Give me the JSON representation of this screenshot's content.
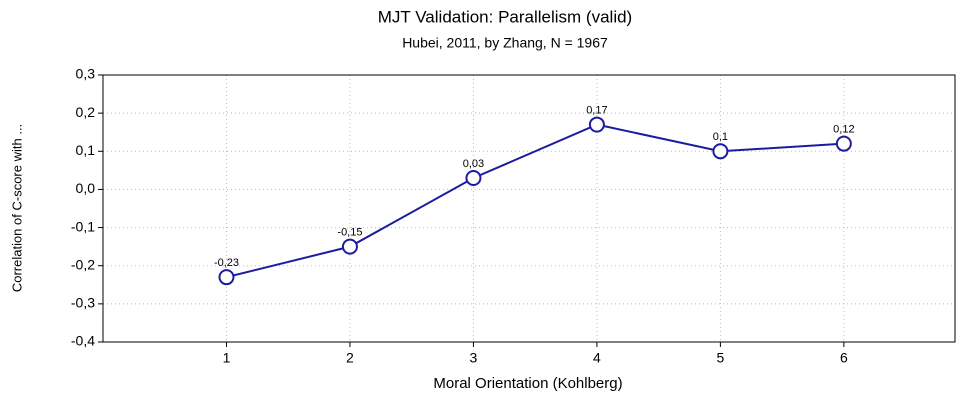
{
  "chart_data": {
    "type": "line",
    "title": "MJT Validation: Parallelism (valid)",
    "subtitle": "Hubei, 2011, by Zhang, N = 1967",
    "x_label": "Moral Orientation (Kohlberg)",
    "y_label": "Correlation of C-score with ...",
    "x": [
      1,
      2,
      3,
      4,
      5,
      6
    ],
    "series": [
      {
        "color": "#1c1ca0",
        "values": [
          -0.23,
          -0.15,
          0.03,
          0.17,
          0.1,
          0.12
        ],
        "value_labels": [
          "-0,23",
          "-0,15",
          "0,03",
          "0,17",
          "0,1",
          "0,12"
        ]
      }
    ],
    "xlim": [
      0,
      6.9
    ],
    "xticks": [
      1,
      2,
      3,
      4,
      5,
      6
    ],
    "ylim": [
      -0.4,
      0.3
    ],
    "yticks": [
      {
        "value": -0.4,
        "label": "-0,4"
      },
      {
        "value": -0.3,
        "label": "-0,3"
      },
      {
        "value": -0.2,
        "label": "-0,2"
      },
      {
        "value": -0.1,
        "label": "-0,1"
      },
      {
        "value": 0.0,
        "label": "0,0"
      },
      {
        "value": 0.1,
        "label": "0,1"
      },
      {
        "value": 0.2,
        "label": "0,2"
      },
      {
        "value": 0.3,
        "label": "0,3"
      }
    ],
    "grid": true
  }
}
